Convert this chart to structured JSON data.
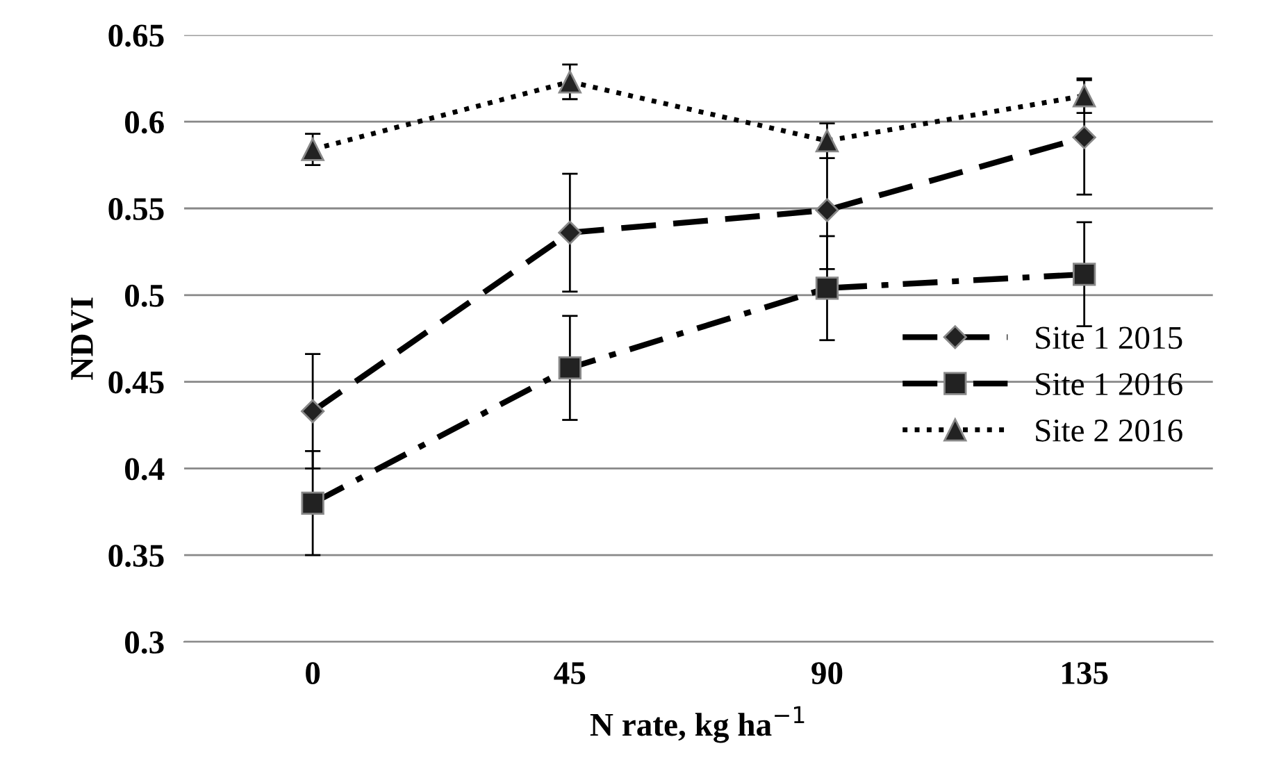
{
  "chart_data": {
    "type": "line",
    "xlabel": "N rate, kg ha$^{−1}$",
    "ylabel": "NDVI",
    "categories": [
      "0",
      "45",
      "90",
      "135"
    ],
    "series": [
      {
        "name": "Site 1 2015",
        "color": "#000000",
        "marker": "diamond",
        "line_style": "dashed",
        "values": [
          0.433,
          0.536,
          0.549,
          0.591
        ],
        "errors": [
          0.033,
          0.034,
          0.034,
          0.033
        ]
      },
      {
        "name": "Site 1 2016",
        "color": "#000000",
        "marker": "square",
        "line_style": "dashdot",
        "values": [
          0.38,
          0.458,
          0.504,
          0.512
        ],
        "errors": [
          0.03,
          0.03,
          0.03,
          0.03
        ]
      },
      {
        "name": "Site 2 2016",
        "color": "#000000",
        "marker": "triangle",
        "line_style": "dotted",
        "values": [
          0.584,
          0.623,
          0.589,
          0.615
        ],
        "errors": [
          0.009,
          0.01,
          0.01,
          0.01
        ]
      }
    ],
    "ylim": [
      0.3,
      0.65
    ],
    "yticks": [
      0.3,
      0.35,
      0.4,
      0.45,
      0.5,
      0.55,
      0.6,
      0.65
    ],
    "grid": "y",
    "legend": "right"
  }
}
